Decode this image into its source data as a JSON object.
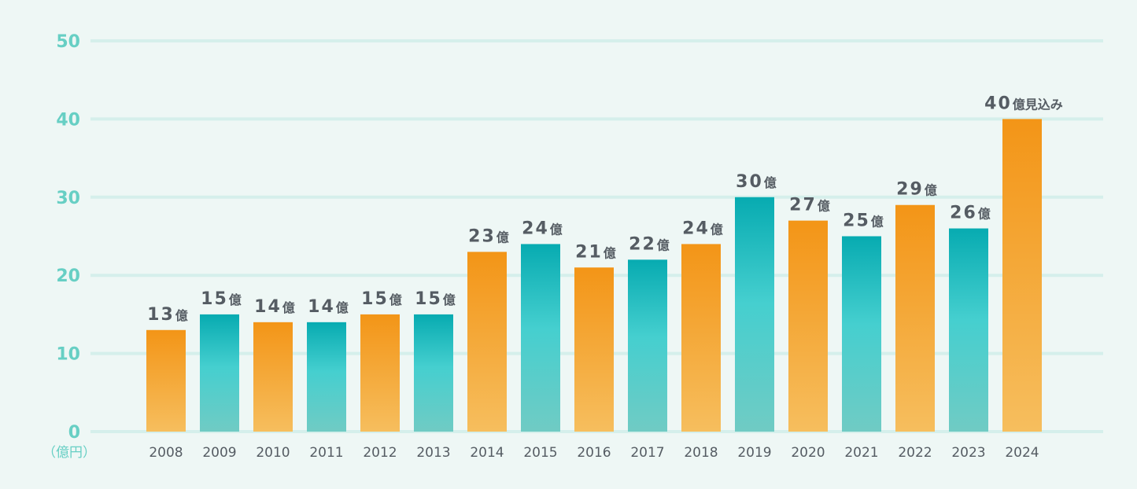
{
  "chart_data": {
    "type": "bar",
    "title": "",
    "xlabel": "",
    "ylabel": "（億円）",
    "ylim": [
      0,
      50
    ],
    "yticks": [
      "0",
      "10",
      "20",
      "30",
      "40",
      "50"
    ],
    "grid": true,
    "categories": [
      "2008",
      "2009",
      "2010",
      "2011",
      "2012",
      "2013",
      "2014",
      "2015",
      "2016",
      "2017",
      "2018",
      "2019",
      "2020",
      "2021",
      "2022",
      "2023",
      "2024"
    ],
    "values": [
      13,
      15,
      14,
      14,
      15,
      15,
      23,
      24,
      21,
      22,
      24,
      30,
      27,
      25,
      29,
      26,
      40
    ],
    "data_labels": [
      {
        "num": "13",
        "unit": "億"
      },
      {
        "num": "15",
        "unit": "億"
      },
      {
        "num": "14",
        "unit": "億"
      },
      {
        "num": "14",
        "unit": "億"
      },
      {
        "num": "15",
        "unit": "億"
      },
      {
        "num": "15",
        "unit": "億"
      },
      {
        "num": "23",
        "unit": "億"
      },
      {
        "num": "24",
        "unit": "億"
      },
      {
        "num": "21",
        "unit": "億"
      },
      {
        "num": "22",
        "unit": "億"
      },
      {
        "num": "24",
        "unit": "億"
      },
      {
        "num": "30",
        "unit": "億"
      },
      {
        "num": "27",
        "unit": "億"
      },
      {
        "num": "25",
        "unit": "億"
      },
      {
        "num": "29",
        "unit": "億"
      },
      {
        "num": "26",
        "unit": "億"
      },
      {
        "num": "40",
        "unit": "億見込み"
      }
    ],
    "bar_colors": [
      "orange",
      "teal",
      "orange",
      "teal",
      "orange",
      "teal",
      "orange",
      "teal",
      "orange",
      "teal",
      "orange",
      "teal",
      "orange",
      "teal",
      "orange",
      "teal",
      "orange"
    ],
    "colors": {
      "orange_top": "#f39517",
      "orange_bottom": "#f6be5e",
      "teal_top": "#07abb1",
      "teal_mid": "#45cfcf",
      "teal_bottom": "#70cbc4",
      "axis_text": "#67cfc4",
      "label_text": "#555c63",
      "grid": "#d5efeb",
      "background": "#eef7f5"
    }
  }
}
